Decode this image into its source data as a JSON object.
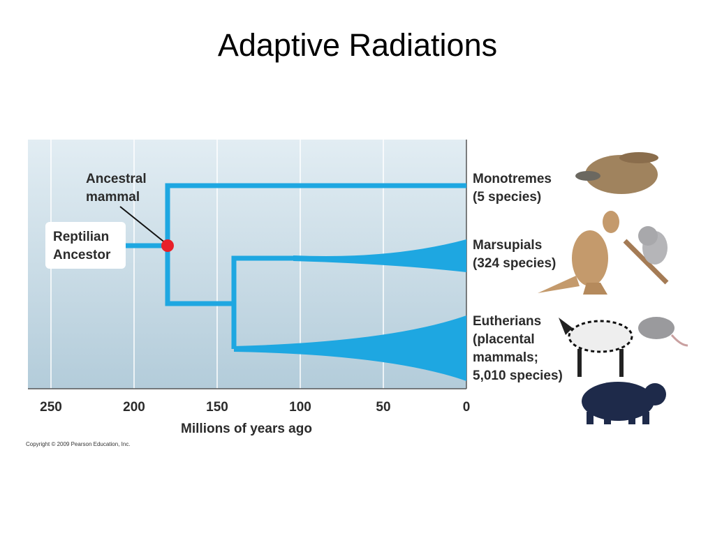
{
  "title": "Adaptive Radiations",
  "axis": {
    "label": "Millions of years ago",
    "ticks": [
      250,
      200,
      150,
      100,
      50,
      0
    ]
  },
  "nodes": {
    "ancestral_mammal": [
      "Ancestral",
      "mammal"
    ],
    "reptilian_ancestor": [
      "Reptilian",
      "Ancestor"
    ]
  },
  "groups": [
    {
      "lines": [
        "Monotremes",
        "(5 species)"
      ]
    },
    {
      "lines": [
        "Marsupials",
        "(324 species)"
      ]
    },
    {
      "lines": [
        "Eutherians",
        "(placental",
        "mammals;",
        "5,010 species)"
      ]
    }
  ],
  "copyright": "Copyright © 2009 Pearson Education, Inc."
}
